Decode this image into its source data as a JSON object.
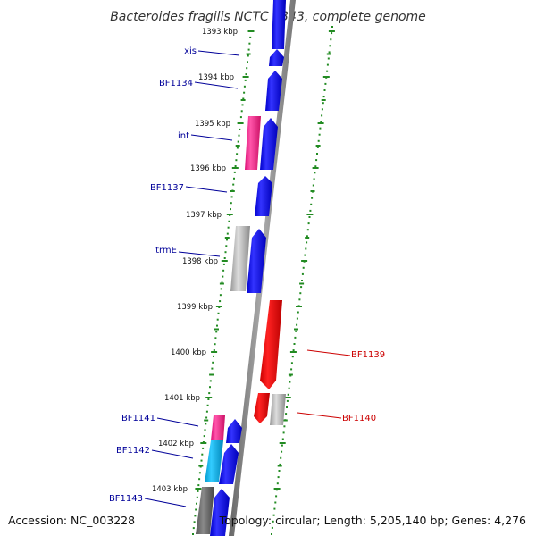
{
  "title": "Bacteroides fragilis NCTC 9343, complete genome",
  "accession_text": "Accession: NC_003228",
  "topology_text": "Topology: circular; Length: 5,205,140 bp; Genes: 4,276",
  "colors": {
    "forward_gene": "#0000ee",
    "reverse_gene": "#ee0000",
    "label_forward": "#000099",
    "label_reverse": "#cc0000",
    "tick": "#228b22",
    "pink_feature": "#ff3399",
    "cyan_feature": "#00bfff",
    "grey_feature": "#b0b0b0",
    "dark_grey_feature": "#707070",
    "backbone": "#808080"
  },
  "kbp_ticks": [
    "1393 kbp",
    "1394 kbp",
    "1395 kbp",
    "1396 kbp",
    "1397 kbp",
    "1398 kbp",
    "1399 kbp",
    "1400 kbp",
    "1401 kbp",
    "1402 kbp",
    "1403 kbp"
  ],
  "gene_labels": {
    "forward": [
      "xis",
      "BF1134",
      "int",
      "BF1137",
      "trmE",
      "BF1141",
      "BF1142",
      "BF1143"
    ],
    "reverse": [
      "BF1139",
      "BF1140"
    ]
  }
}
